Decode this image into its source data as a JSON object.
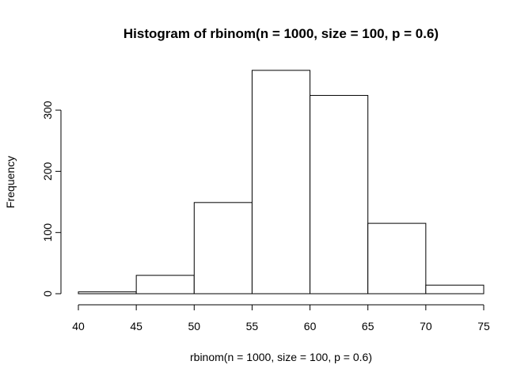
{
  "chart_data": {
    "type": "bar",
    "title": "Histogram of rbinom(n = 1000, size = 100, p = 0.6)",
    "xlabel": "rbinom(n = 1000, size = 100, p = 0.6)",
    "ylabel": "Frequency",
    "bins": [
      {
        "start": 40,
        "end": 45,
        "count": 3
      },
      {
        "start": 45,
        "end": 50,
        "count": 30
      },
      {
        "start": 50,
        "end": 55,
        "count": 149
      },
      {
        "start": 55,
        "end": 60,
        "count": 365
      },
      {
        "start": 60,
        "end": 65,
        "count": 324
      },
      {
        "start": 65,
        "end": 70,
        "count": 115
      },
      {
        "start": 70,
        "end": 75,
        "count": 14
      }
    ],
    "x_ticks": [
      40,
      45,
      50,
      55,
      60,
      65,
      70,
      75
    ],
    "y_ticks": [
      0,
      100,
      200,
      300
    ],
    "xlim": [
      40,
      75
    ],
    "ylim": [
      0,
      365
    ],
    "grid": false
  }
}
